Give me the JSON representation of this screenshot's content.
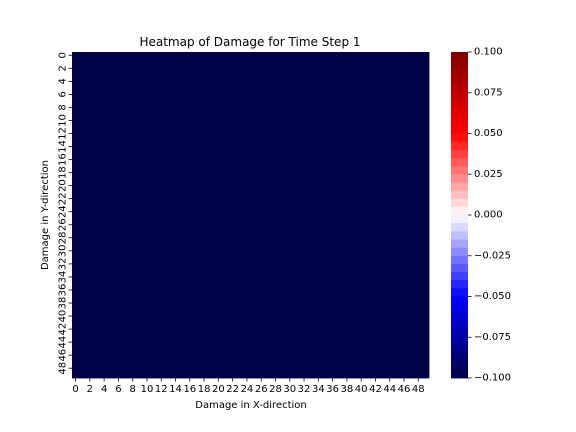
{
  "chart_data": {
    "type": "heatmap",
    "title": "Heatmap of Damage for Time Step 1",
    "xlabel": "Damage in X-direction",
    "ylabel": "Damage in Y-direction",
    "x_ticks": [
      "0",
      "2",
      "4",
      "6",
      "8",
      "10",
      "12",
      "14",
      "16",
      "18",
      "20",
      "22",
      "24",
      "26",
      "28",
      "30",
      "32",
      "34",
      "36",
      "38",
      "40",
      "42",
      "44",
      "46",
      "48"
    ],
    "y_ticks": [
      "0",
      "2",
      "4",
      "6",
      "8",
      "10",
      "12",
      "14",
      "16",
      "18",
      "20",
      "22",
      "24",
      "26",
      "28",
      "30",
      "32",
      "34",
      "36",
      "38",
      "40",
      "42",
      "44",
      "46",
      "48"
    ],
    "grid_size": [
      50,
      50
    ],
    "fill_value": -0.1,
    "vmin": -0.1,
    "vmax": 0.1,
    "colormap": "seismic",
    "colorbar_ticks": [
      "0.100",
      "0.075",
      "0.050",
      "0.025",
      "0.000",
      "−0.025",
      "−0.050",
      "−0.075",
      "−0.100"
    ],
    "colors": {
      "cell": "#000046",
      "cmap_stops": [
        "#000046",
        "#0000ff",
        "#ffffff",
        "#ff0000",
        "#800000"
      ]
    }
  }
}
